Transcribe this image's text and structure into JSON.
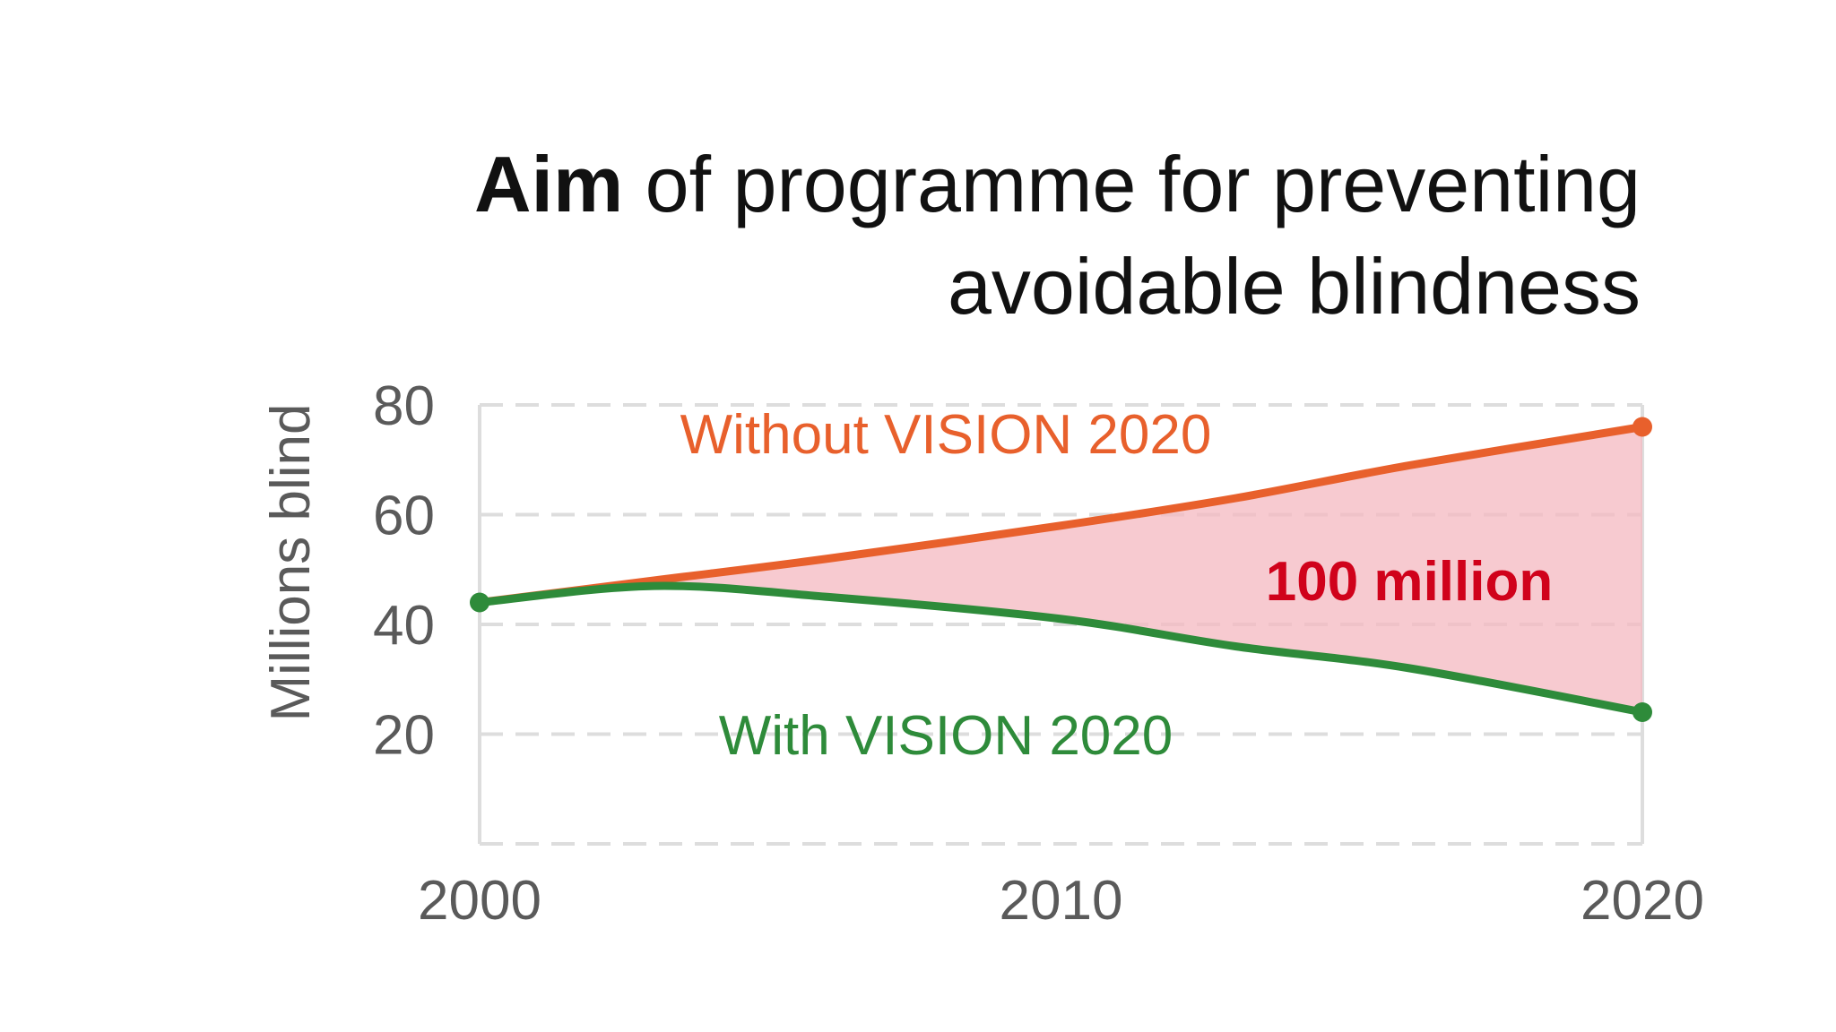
{
  "title": {
    "bold": "Aim",
    "rest": " of programme for preventing",
    "line2": "avoidable blindness"
  },
  "colors": {
    "without": "#e8602c",
    "with": "#2e8b3a",
    "gap_fill": "#f4b8c0",
    "gap_label": "#d0021b",
    "grid": "#dddddd",
    "tick": "#5a5a5a"
  },
  "chart_data": {
    "type": "line",
    "title": "Aim of programme for preventing avoidable blindness",
    "xlabel": "",
    "ylabel": "Millions blind",
    "xlim": [
      2000,
      2020
    ],
    "ylim": [
      0,
      80
    ],
    "x_ticks": [
      "2000",
      "2010",
      "2020"
    ],
    "y_ticks": [
      "20",
      "40",
      "60",
      "80"
    ],
    "grid": true,
    "series": [
      {
        "name": "Without VISION 2020",
        "x": [
          2000,
          2003,
          2006,
          2010,
          2013,
          2016,
          2020
        ],
        "values": [
          44,
          48,
          52,
          58,
          63,
          69,
          76
        ]
      },
      {
        "name": "With VISION 2020",
        "x": [
          2000,
          2003,
          2006,
          2010,
          2013,
          2016,
          2020
        ],
        "values": [
          44,
          47,
          45,
          41,
          36,
          32,
          24
        ]
      }
    ],
    "annotations": [
      {
        "text": "100 million"
      }
    ]
  }
}
